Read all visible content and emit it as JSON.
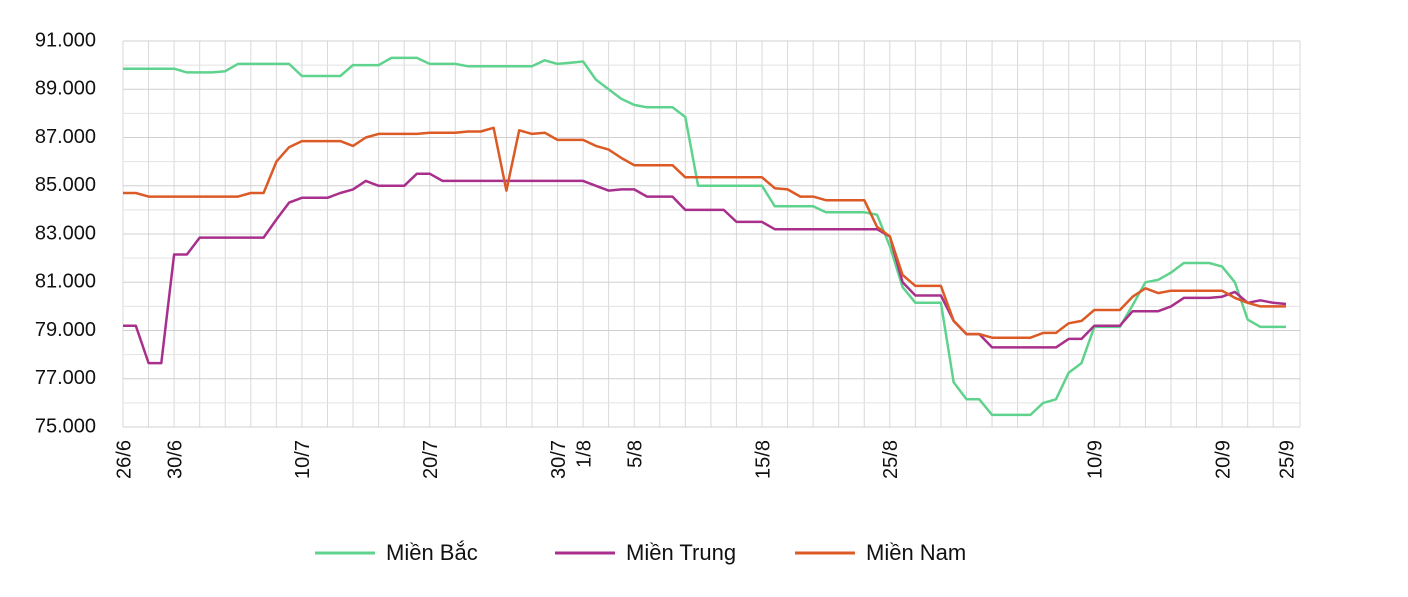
{
  "chart_data": {
    "type": "line",
    "categories": [
      "26/6",
      null,
      null,
      null,
      "30/6",
      null,
      null,
      null,
      null,
      null,
      null,
      null,
      null,
      null,
      "10/7",
      null,
      null,
      null,
      null,
      null,
      null,
      null,
      null,
      null,
      "20/7",
      null,
      null,
      null,
      null,
      null,
      null,
      null,
      null,
      null,
      "30/7",
      null,
      "1/8",
      null,
      null,
      null,
      "5/8",
      null,
      null,
      null,
      null,
      null,
      null,
      null,
      null,
      null,
      "15/8",
      null,
      null,
      null,
      null,
      null,
      null,
      null,
      null,
      null,
      "25/8",
      null,
      null,
      null,
      null,
      null,
      null,
      null,
      null,
      null,
      null,
      null,
      null,
      null,
      null,
      null,
      "10/9",
      null,
      null,
      null,
      null,
      null,
      null,
      null,
      null,
      null,
      "20/9",
      null,
      null,
      null,
      null,
      "25/9"
    ],
    "series": [
      {
        "name": "Miền Bắc",
        "color": "#5fd38d",
        "values": [
          89850,
          89850,
          89850,
          89850,
          89850,
          89700,
          89700,
          89700,
          89750,
          90050,
          90050,
          90050,
          90050,
          90050,
          89550,
          89550,
          89550,
          89550,
          90000,
          90000,
          90000,
          90300,
          90300,
          90300,
          90050,
          90050,
          90050,
          89950,
          89950,
          89950,
          89950,
          89950,
          89950,
          90200,
          90050,
          90100,
          90150,
          89400,
          89000,
          88600,
          88350,
          88250,
          88250,
          88250,
          87850,
          85000,
          85000,
          85000,
          85000,
          85000,
          85000,
          84150,
          84150,
          84150,
          84150,
          83900,
          83900,
          83900,
          83900,
          83800,
          82500,
          80800,
          80150,
          80150,
          80150,
          76850,
          76150,
          76150,
          75500,
          75500,
          75500,
          75500,
          76000,
          76150,
          77250,
          77650,
          79150,
          79150,
          79150,
          80050,
          81000,
          81100,
          81400,
          81800,
          81800,
          81800,
          81650,
          81000,
          79450,
          79150,
          79150,
          79150
        ]
      },
      {
        "name": "Miền Trung",
        "color": "#a8308c",
        "values": [
          79200,
          79200,
          77650,
          77650,
          82150,
          82150,
          82850,
          82850,
          82850,
          82850,
          82850,
          82850,
          83600,
          84300,
          84500,
          84500,
          84500,
          84700,
          84850,
          85200,
          85000,
          85000,
          85000,
          85500,
          85500,
          85200,
          85200,
          85200,
          85200,
          85200,
          85200,
          85200,
          85200,
          85200,
          85200,
          85200,
          85200,
          85000,
          84800,
          84850,
          84850,
          84550,
          84550,
          84550,
          84000,
          84000,
          84000,
          84000,
          83500,
          83500,
          83500,
          83200,
          83200,
          83200,
          83200,
          83200,
          83200,
          83200,
          83200,
          83200,
          82900,
          81000,
          80450,
          80450,
          80450,
          79400,
          78850,
          78850,
          78300,
          78300,
          78300,
          78300,
          78300,
          78300,
          78650,
          78650,
          79200,
          79200,
          79200,
          79800,
          79800,
          79800,
          80000,
          80350,
          80350,
          80350,
          80400,
          80600,
          80150,
          80250,
          80150,
          80100
        ]
      },
      {
        "name": "Miền Nam",
        "color": "#dc5a26",
        "values": [
          84700,
          84700,
          84550,
          84550,
          84550,
          84550,
          84550,
          84550,
          84550,
          84550,
          84700,
          84700,
          86000,
          86600,
          86850,
          86850,
          86850,
          86850,
          86650,
          87000,
          87150,
          87150,
          87150,
          87150,
          87200,
          87200,
          87200,
          87250,
          87250,
          87400,
          84800,
          87300,
          87150,
          87200,
          86900,
          86900,
          86900,
          86650,
          86500,
          86150,
          85850,
          85850,
          85850,
          85850,
          85350,
          85350,
          85350,
          85350,
          85350,
          85350,
          85350,
          84900,
          84850,
          84550,
          84550,
          84400,
          84400,
          84400,
          84400,
          83300,
          82900,
          81300,
          80850,
          80850,
          80850,
          79400,
          78850,
          78850,
          78700,
          78700,
          78700,
          78700,
          78900,
          78900,
          79300,
          79400,
          79850,
          79850,
          79850,
          80400,
          80750,
          80550,
          80650,
          80650,
          80650,
          80650,
          80650,
          80350,
          80150,
          80000,
          80000,
          80000
        ]
      }
    ],
    "ylim": [
      75000,
      91000
    ],
    "yticks": [
      {
        "value": 75000,
        "label": "75.000"
      },
      {
        "value": 77000,
        "label": "77.000"
      },
      {
        "value": 79000,
        "label": "79.000"
      },
      {
        "value": 81000,
        "label": "81.000"
      },
      {
        "value": 83000,
        "label": "83.000"
      },
      {
        "value": 85000,
        "label": "85.000"
      },
      {
        "value": 87000,
        "label": "87.000"
      },
      {
        "value": 89000,
        "label": "89.000"
      },
      {
        "value": 91000,
        "label": "91.000"
      }
    ],
    "grid": true,
    "legend": "bottom"
  }
}
